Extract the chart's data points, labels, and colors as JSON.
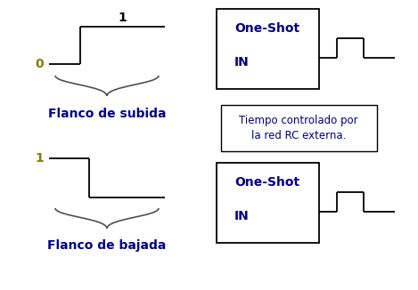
{
  "bg_color": "#ffffff",
  "gold": "#808000",
  "dark_blue": "#00008B",
  "black": "#000000",
  "gray_brace": "#505050",
  "flanco_subida_label": "Flanco de subida",
  "flanco_bajada_label": "Flanco de bajada",
  "oneshot_label": "One-Shot",
  "in_label": "IN",
  "tiempo_label": "Tiempo controlado por\nla red RC externa.",
  "label_0": "0",
  "label_1": "1",
  "fig_w": 4.69,
  "fig_h": 3.26,
  "dpi": 100
}
